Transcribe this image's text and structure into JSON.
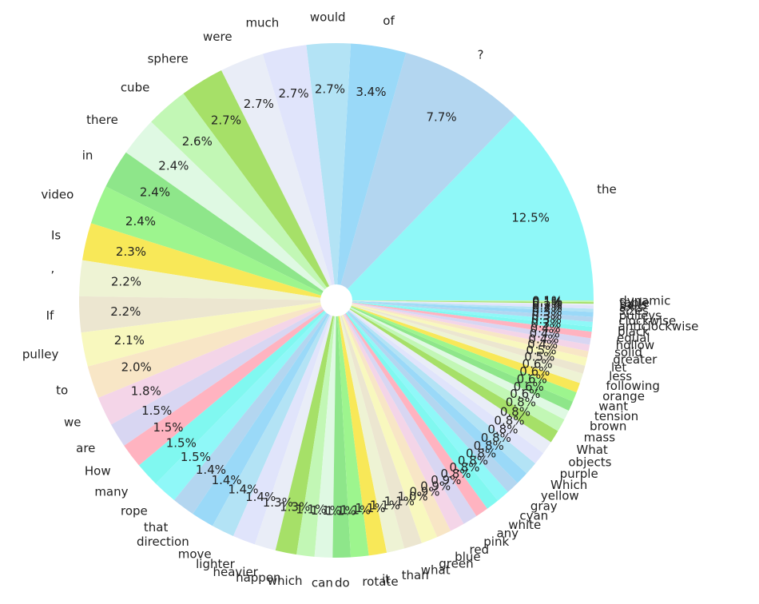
{
  "chart_data": {
    "type": "pie",
    "categories": [
      "the",
      "?",
      "of",
      "would",
      "much",
      "were",
      "sphere",
      "cube",
      "there",
      "in",
      "video",
      "Is",
      "’",
      "If",
      "pulley",
      "to",
      "we",
      "are",
      "How",
      "many",
      "rope",
      "that",
      "direction",
      "move",
      "lighter",
      "heavier",
      "happen",
      "which",
      "can",
      "do",
      "rotate",
      "it",
      "than",
      "what",
      "green",
      "blue",
      "red",
      "pink",
      "any",
      "white",
      "cyan",
      "gray",
      "yellow",
      "Which",
      "purple",
      "objects",
      "What",
      "mass",
      "brown",
      "tension",
      "want",
      "orange",
      "following",
      "less",
      "let",
      "greater",
      "solid",
      "hollow",
      "equal",
      "black",
      "anticlockwise",
      "clockwise",
      "pulleys",
      "sizes",
      "axis",
      "balls",
      "table",
      "dynamic"
    ],
    "values": [
      12.5,
      7.7,
      3.4,
      2.7,
      2.7,
      2.7,
      2.7,
      2.6,
      2.4,
      2.4,
      2.4,
      2.3,
      2.2,
      2.2,
      2.1,
      2.0,
      1.8,
      1.5,
      1.5,
      1.5,
      1.5,
      1.4,
      1.4,
      1.4,
      1.4,
      1.3,
      1.3,
      1.1,
      1.1,
      1.1,
      1.1,
      1.1,
      1.1,
      1.1,
      1.0,
      0.9,
      0.9,
      0.9,
      0.8,
      0.8,
      0.8,
      0.8,
      0.8,
      0.8,
      0.8,
      0.8,
      0.8,
      0.8,
      0.6,
      0.6,
      0.6,
      0.6,
      0.6,
      0.5,
      0.5,
      0.4,
      0.4,
      0.4,
      0.4,
      0.3,
      0.3,
      0.3,
      0.3,
      0.2,
      0.2,
      0.1,
      0.1,
      0.1
    ],
    "value_labels": [
      "12.5%",
      "7.7%",
      "3.4%",
      "2.7%",
      "2.7%",
      "2.7%",
      "2.7%",
      "2.6%",
      "2.4%",
      "2.4%",
      "2.4%",
      "2.3%",
      "2.2%",
      "2.2%",
      "2.1%",
      "2.0%",
      "1.8%",
      "1.5%",
      "1.5%",
      "1.5%",
      "1.5%",
      "1.4%",
      "1.4%",
      "1.4%",
      "1.4%",
      "1.3%",
      "1.3%",
      "1.1%",
      "1.1%",
      "1.1%",
      "1.1%",
      "1.1%",
      "1.1%",
      "1.1%",
      "1.0%",
      "0.9%",
      "0.9%",
      "0.9%",
      "0.8%",
      "0.8%",
      "0.8%",
      "0.8%",
      "0.8%",
      "0.8%",
      "0.8%",
      "0.8%",
      "0.8%",
      "0.8%",
      "0.6%",
      "0.6%",
      "0.6%",
      "0.6%",
      "0.6%",
      "0.5%",
      "0.5%",
      "0.4%",
      "0.4%",
      "0.4%",
      "0.4%",
      "0.3%",
      "0.3%",
      "0.3%",
      "0.3%",
      "0.2%",
      "0.2%",
      "0.1%",
      "0.1%",
      "0.1%"
    ],
    "colors": [
      "#8ff8f8",
      "#b3d6f0",
      "#9ad9f8",
      "#b3e3f5",
      "#e0e4fb",
      "#e9edf7",
      "#a6e068",
      "#c2f7b5",
      "#dff9e3",
      "#8ee68a",
      "#9df58e",
      "#f8e858",
      "#eef3d4",
      "#ece6d0",
      "#f8f8be",
      "#f8e6c6",
      "#f4d5e8",
      "#d8d6f2",
      "#ffb3c0",
      "#80f8f0"
    ]
  }
}
